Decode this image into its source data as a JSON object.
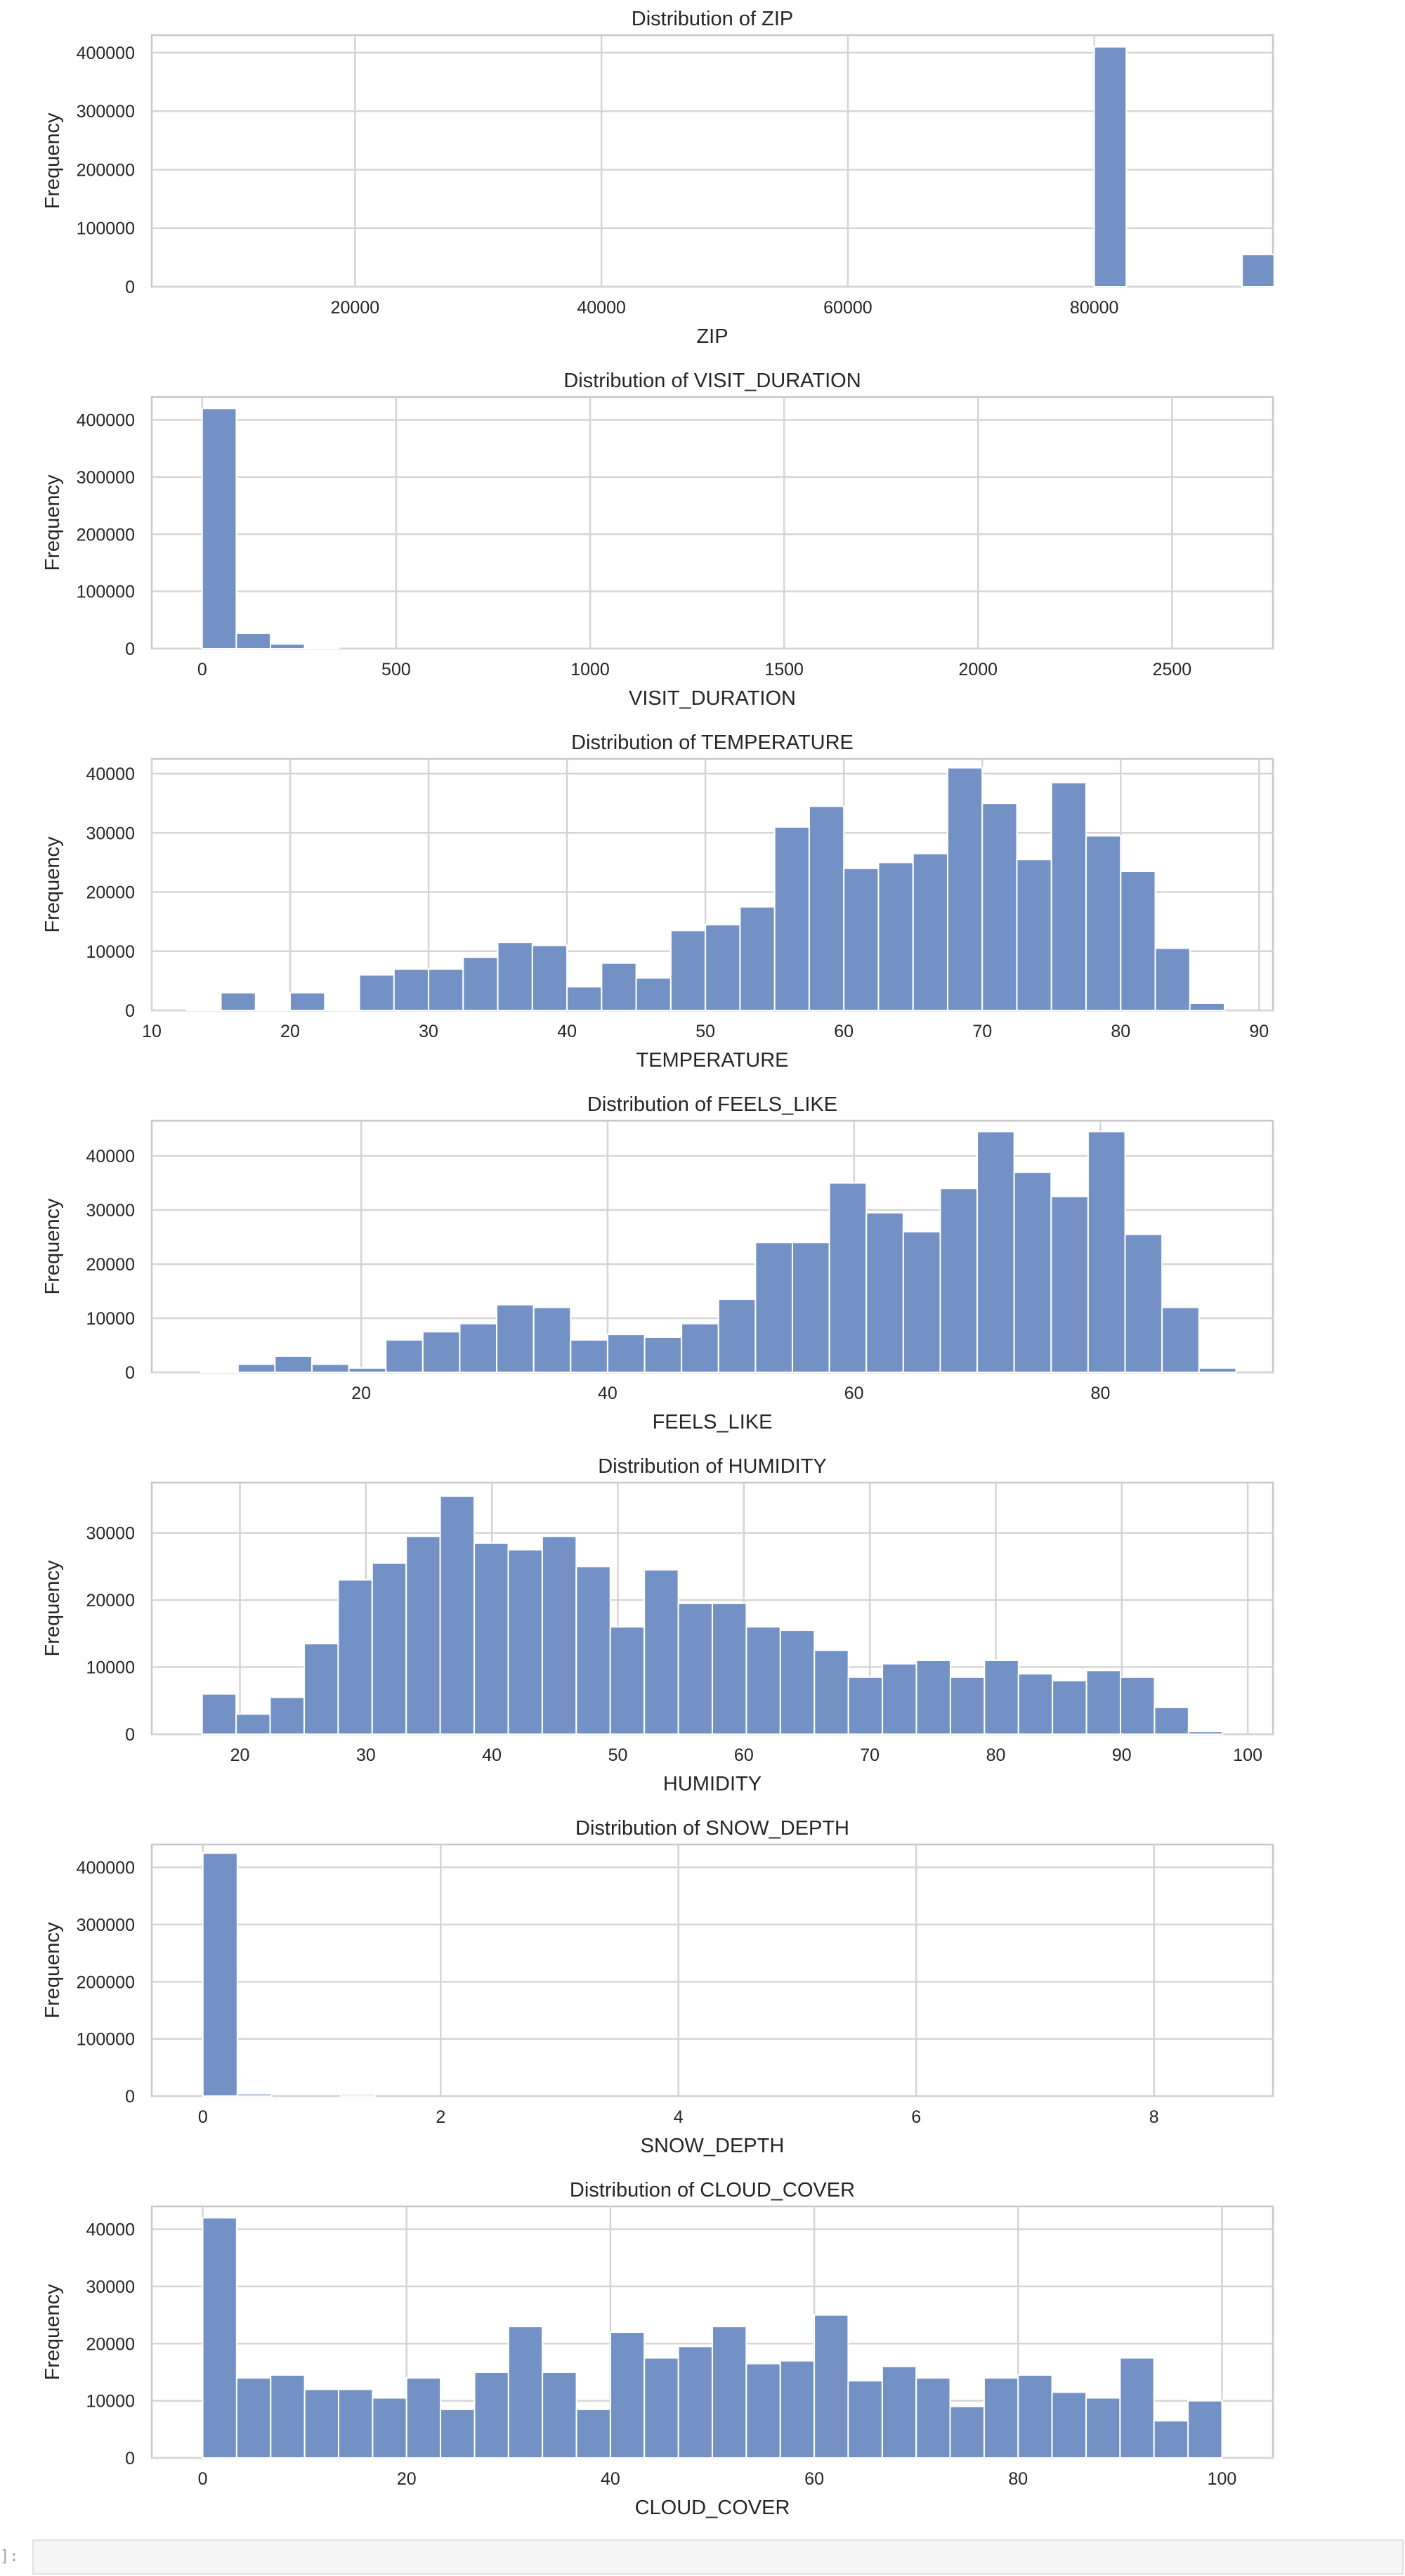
{
  "chart_data": [
    {
      "type": "bar",
      "title": "Distribution of ZIP",
      "xlabel": "ZIP",
      "ylabel": "Frequency",
      "xlim": [
        3500,
        94500
      ],
      "ylim": [
        0,
        430000
      ],
      "xticks": [
        20000,
        40000,
        60000,
        80000
      ],
      "xtick_labels": [
        "20000",
        "40000",
        "60000",
        "80000"
      ],
      "yticks": [
        0,
        100000,
        200000,
        300000,
        400000
      ],
      "ytick_labels": [
        "0",
        "100000",
        "200000",
        "300000",
        "400000"
      ],
      "grid": true,
      "bins": [
        [
          80000,
          82600,
          410000
        ],
        [
          92000,
          94600,
          55000
        ]
      ]
    },
    {
      "type": "bar",
      "title": "Distribution of VISIT_DURATION",
      "xlabel": "VISIT_DURATION",
      "ylabel": "Frequency",
      "xlim": [
        -130,
        2760
      ],
      "ylim": [
        0,
        440000
      ],
      "xticks": [
        0,
        500,
        1000,
        1500,
        2000,
        2500
      ],
      "xtick_labels": [
        "0",
        "500",
        "1000",
        "1500",
        "2000",
        "2500"
      ],
      "yticks": [
        0,
        100000,
        200000,
        300000,
        400000
      ],
      "ytick_labels": [
        "0",
        "100000",
        "200000",
        "300000",
        "400000"
      ],
      "grid": true,
      "bins": [
        [
          0,
          88,
          420000
        ],
        [
          88,
          176,
          27000
        ],
        [
          176,
          264,
          8000
        ],
        [
          264,
          352,
          1500
        ]
      ]
    },
    {
      "type": "bar",
      "title": "Distribution of TEMPERATURE",
      "xlabel": "TEMPERATURE",
      "ylabel": "Frequency",
      "xlim": [
        10,
        91
      ],
      "ylim": [
        0,
        42500
      ],
      "xticks": [
        10,
        20,
        30,
        40,
        50,
        60,
        70,
        80,
        90
      ],
      "xtick_labels": [
        "10",
        "20",
        "30",
        "40",
        "50",
        "60",
        "70",
        "80",
        "90"
      ],
      "yticks": [
        0,
        10000,
        20000,
        30000,
        40000
      ],
      "ytick_labels": [
        "0",
        "10000",
        "20000",
        "30000",
        "40000"
      ],
      "grid": true,
      "bins": [
        [
          12.5,
          15.0,
          200
        ],
        [
          15.0,
          17.5,
          3000
        ],
        [
          17.5,
          20.0,
          200
        ],
        [
          20.0,
          22.5,
          3000
        ],
        [
          22.5,
          25.0,
          200
        ],
        [
          25.0,
          27.5,
          6000
        ],
        [
          27.5,
          30.0,
          7000
        ],
        [
          30.0,
          32.5,
          7000
        ],
        [
          32.5,
          35.0,
          9000
        ],
        [
          35.0,
          37.5,
          11500
        ],
        [
          37.5,
          40.0,
          11000
        ],
        [
          40.0,
          42.5,
          4000
        ],
        [
          42.5,
          45.0,
          8000
        ],
        [
          45.0,
          47.5,
          5500
        ],
        [
          47.5,
          50.0,
          13500
        ],
        [
          50.0,
          52.5,
          14500
        ],
        [
          52.5,
          55.0,
          17500
        ],
        [
          55.0,
          57.5,
          31000
        ],
        [
          57.5,
          60.0,
          34500
        ],
        [
          60.0,
          62.5,
          24000
        ],
        [
          62.5,
          65.0,
          25000
        ],
        [
          65.0,
          67.5,
          26500
        ],
        [
          67.5,
          70.0,
          41000
        ],
        [
          70.0,
          72.5,
          35000
        ],
        [
          72.5,
          75.0,
          25500
        ],
        [
          75.0,
          77.5,
          38500
        ],
        [
          77.5,
          80.0,
          29500
        ],
        [
          80.0,
          82.5,
          23500
        ],
        [
          82.5,
          85.0,
          10500
        ],
        [
          85.0,
          87.5,
          1200
        ]
      ]
    },
    {
      "type": "bar",
      "title": "Distribution of FEELS_LIKE",
      "xlabel": "FEELS_LIKE",
      "ylabel": "Frequency",
      "xlim": [
        3,
        94
      ],
      "ylim": [
        0,
        46500
      ],
      "xticks": [
        20,
        40,
        60,
        80
      ],
      "xtick_labels": [
        "20",
        "40",
        "60",
        "80"
      ],
      "yticks": [
        0,
        10000,
        20000,
        30000,
        40000
      ],
      "ytick_labels": [
        "0",
        "10000",
        "20000",
        "30000",
        "40000"
      ],
      "grid": true,
      "bins": [
        [
          7.0,
          10.0,
          200
        ],
        [
          10.0,
          13.0,
          1500
        ],
        [
          13.0,
          16.0,
          3000
        ],
        [
          16.0,
          19.0,
          1500
        ],
        [
          19.0,
          22.0,
          800
        ],
        [
          22.0,
          25.0,
          6000
        ],
        [
          25.0,
          28.0,
          7500
        ],
        [
          28.0,
          31.0,
          9000
        ],
        [
          31.0,
          34.0,
          12500
        ],
        [
          34.0,
          37.0,
          12000
        ],
        [
          37.0,
          40.0,
          6000
        ],
        [
          40.0,
          43.0,
          7000
        ],
        [
          43.0,
          46.0,
          6500
        ],
        [
          46.0,
          49.0,
          9000
        ],
        [
          49.0,
          52.0,
          13500
        ],
        [
          52.0,
          55.0,
          24000
        ],
        [
          55.0,
          58.0,
          24000
        ],
        [
          58.0,
          61.0,
          35000
        ],
        [
          61.0,
          64.0,
          29500
        ],
        [
          64.0,
          67.0,
          26000
        ],
        [
          67.0,
          70.0,
          34000
        ],
        [
          70.0,
          73.0,
          44500
        ],
        [
          73.0,
          76.0,
          37000
        ],
        [
          76.0,
          79.0,
          32500
        ],
        [
          79.0,
          82.0,
          44500
        ],
        [
          82.0,
          85.0,
          25500
        ],
        [
          85.0,
          88.0,
          12000
        ],
        [
          88.0,
          91.0,
          800
        ]
      ]
    },
    {
      "type": "bar",
      "title": "Distribution of HUMIDITY",
      "xlabel": "HUMIDITY",
      "ylabel": "Frequency",
      "xlim": [
        13,
        102
      ],
      "ylim": [
        0,
        37500
      ],
      "xticks": [
        20,
        30,
        40,
        50,
        60,
        70,
        80,
        90,
        100
      ],
      "xtick_labels": [
        "20",
        "30",
        "40",
        "50",
        "60",
        "70",
        "80",
        "90",
        "100"
      ],
      "yticks": [
        0,
        10000,
        20000,
        30000
      ],
      "ytick_labels": [
        "0",
        "10000",
        "20000",
        "30000"
      ],
      "grid": true,
      "bins": [
        [
          17.0,
          19.7,
          6000
        ],
        [
          19.7,
          22.4,
          3000
        ],
        [
          22.4,
          25.1,
          5500
        ],
        [
          25.1,
          27.8,
          13500
        ],
        [
          27.8,
          30.5,
          23000
        ],
        [
          30.5,
          33.2,
          25500
        ],
        [
          33.2,
          35.9,
          29500
        ],
        [
          35.9,
          38.6,
          35500
        ],
        [
          38.6,
          41.3,
          28500
        ],
        [
          41.3,
          44.0,
          27500
        ],
        [
          44.0,
          46.7,
          29500
        ],
        [
          46.7,
          49.4,
          25000
        ],
        [
          49.4,
          52.1,
          16000
        ],
        [
          52.1,
          54.8,
          24500
        ],
        [
          54.8,
          57.5,
          19500
        ],
        [
          57.5,
          60.2,
          19500
        ],
        [
          60.2,
          62.9,
          16000
        ],
        [
          62.9,
          65.6,
          15500
        ],
        [
          65.6,
          68.3,
          12500
        ],
        [
          68.3,
          71.0,
          8500
        ],
        [
          71.0,
          73.7,
          10500
        ],
        [
          73.7,
          76.4,
          11000
        ],
        [
          76.4,
          79.1,
          8500
        ],
        [
          79.1,
          81.8,
          11000
        ],
        [
          81.8,
          84.5,
          9000
        ],
        [
          84.5,
          87.2,
          8000
        ],
        [
          87.2,
          89.9,
          9500
        ],
        [
          89.9,
          92.6,
          8500
        ],
        [
          92.6,
          95.3,
          4000
        ],
        [
          95.3,
          98.0,
          400
        ]
      ]
    },
    {
      "type": "bar",
      "title": "Distribution of SNOW_DEPTH",
      "xlabel": "SNOW_DEPTH",
      "ylabel": "Frequency",
      "xlim": [
        -0.43,
        9.0
      ],
      "ylim": [
        0,
        440000
      ],
      "xticks": [
        0,
        2,
        4,
        6,
        8
      ],
      "xtick_labels": [
        "0",
        "2",
        "4",
        "6",
        "8"
      ],
      "yticks": [
        0,
        100000,
        200000,
        300000,
        400000
      ],
      "ytick_labels": [
        "0",
        "100000",
        "200000",
        "300000",
        "400000"
      ],
      "grid": true,
      "bins": [
        [
          0,
          0.29,
          425000
        ],
        [
          0.29,
          0.58,
          4000
        ],
        [
          1.16,
          1.45,
          3000
        ]
      ]
    },
    {
      "type": "bar",
      "title": "Distribution of CLOUD_COVER",
      "xlabel": "CLOUD_COVER",
      "ylabel": "Frequency",
      "xlim": [
        -5,
        105
      ],
      "ylim": [
        0,
        44000
      ],
      "xticks": [
        0,
        20,
        40,
        60,
        80,
        100
      ],
      "xtick_labels": [
        "0",
        "20",
        "40",
        "60",
        "80",
        "100"
      ],
      "yticks": [
        0,
        10000,
        20000,
        30000,
        40000
      ],
      "ytick_labels": [
        "0",
        "10000",
        "20000",
        "30000",
        "40000"
      ],
      "grid": true,
      "bins": [
        [
          0.0,
          3.33,
          42000
        ],
        [
          3.33,
          6.67,
          14000
        ],
        [
          6.67,
          10.0,
          14500
        ],
        [
          10.0,
          13.33,
          12000
        ],
        [
          13.33,
          16.67,
          12000
        ],
        [
          16.67,
          20.0,
          10500
        ],
        [
          20.0,
          23.33,
          14000
        ],
        [
          23.33,
          26.67,
          8500
        ],
        [
          26.67,
          30.0,
          15000
        ],
        [
          30.0,
          33.33,
          23000
        ],
        [
          33.33,
          36.67,
          15000
        ],
        [
          36.67,
          40.0,
          8500
        ],
        [
          40.0,
          43.33,
          22000
        ],
        [
          43.33,
          46.67,
          17500
        ],
        [
          46.67,
          50.0,
          19500
        ],
        [
          50.0,
          53.33,
          23000
        ],
        [
          53.33,
          56.67,
          16500
        ],
        [
          56.67,
          60.0,
          17000
        ],
        [
          60.0,
          63.33,
          25000
        ],
        [
          63.33,
          66.67,
          13500
        ],
        [
          66.67,
          70.0,
          16000
        ],
        [
          70.0,
          73.33,
          14000
        ],
        [
          73.33,
          76.67,
          9000
        ],
        [
          76.67,
          80.0,
          14000
        ],
        [
          80.0,
          83.33,
          14500
        ],
        [
          83.33,
          86.67,
          11500
        ],
        [
          86.67,
          90.0,
          10500
        ],
        [
          90.0,
          93.33,
          17500
        ],
        [
          93.33,
          96.67,
          6500
        ],
        [
          96.67,
          100.0,
          10000
        ]
      ]
    }
  ],
  "colors": {
    "bar": "#7491c5",
    "grid": "#d5d5d5",
    "frame": "#c8c8c8",
    "text": "#262626"
  },
  "cell": {
    "prompt": "]:"
  }
}
